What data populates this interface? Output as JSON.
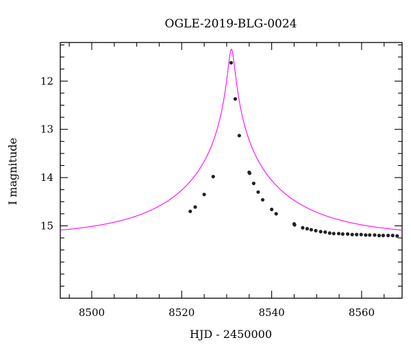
{
  "chart_data": {
    "type": "scatter",
    "title": "OGLE-2019-BLG-0024",
    "xlabel": "HJD - 2450000",
    "ylabel": "I magnitude",
    "xlim": [
      8493,
      8569
    ],
    "ylim": [
      16.5,
      11.2
    ],
    "y_inverted": true,
    "x_ticks": [
      8500,
      8520,
      8540,
      8560
    ],
    "y_ticks": [
      12,
      13,
      14,
      15
    ],
    "x_minor_step": 5,
    "y_minor_step": 0.25,
    "grid": false,
    "colors": {
      "model": "#ff00ff",
      "points": "#222222"
    },
    "model": {
      "name": "",
      "t0": 8531.05,
      "tE": 25.0,
      "u0": 0.028,
      "baseline_mag": 15.22
    },
    "series": [
      {
        "name": "",
        "x": [
          8521.9,
          8523.0,
          8525.0,
          8527.0,
          8531.0,
          8531.9,
          8532.8,
          8535.0,
          8535.1,
          8536.0,
          8537.0,
          8538.0,
          8540.0,
          8541.0,
          8545.0,
          8545.1,
          8546.9,
          8547.9,
          8548.8,
          8549.8,
          8550.9,
          8551.9,
          8552.9,
          8553.8,
          8554.9,
          8555.8,
          8556.9,
          8557.9,
          8558.9,
          8559.9,
          8560.9,
          8561.8,
          8562.9,
          8563.9,
          8564.8,
          8565.9,
          8566.9,
          8567.9
        ],
        "y": [
          14.7,
          14.61,
          14.35,
          13.98,
          11.62,
          12.37,
          13.13,
          13.89,
          13.91,
          14.12,
          14.3,
          14.46,
          14.66,
          14.75,
          14.96,
          14.98,
          15.04,
          15.06,
          15.08,
          15.1,
          15.12,
          15.13,
          15.15,
          15.16,
          15.16,
          15.17,
          15.17,
          15.18,
          15.18,
          15.18,
          15.19,
          15.19,
          15.19,
          15.2,
          15.2,
          15.2,
          15.2,
          15.21
        ]
      }
    ]
  }
}
